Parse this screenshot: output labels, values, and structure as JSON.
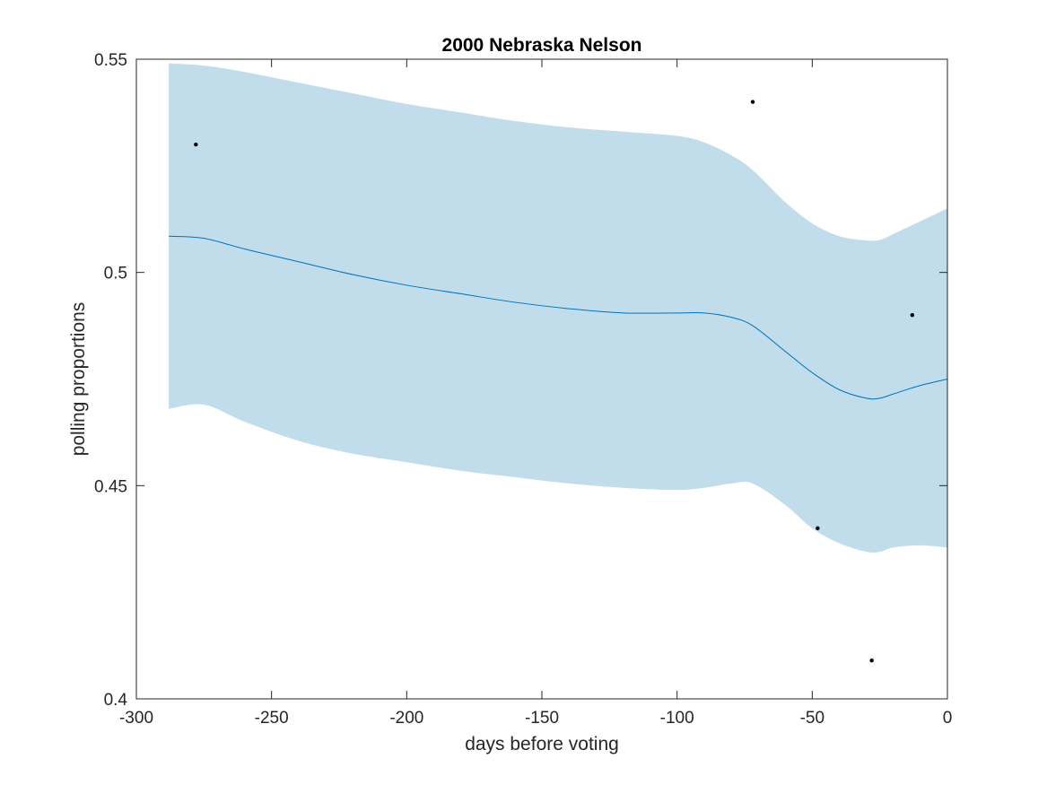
{
  "chart_data": {
    "type": "line",
    "title": "2000 Nebraska Nelson",
    "xlabel": "days before voting",
    "ylabel": "polling proportions",
    "xlim": [
      -300,
      0
    ],
    "ylim": [
      0.4,
      0.55
    ],
    "xticks": [
      -300,
      -250,
      -200,
      -150,
      -100,
      -50,
      0
    ],
    "xtick_labels": [
      "-300",
      "-250",
      "-200",
      "-150",
      "-100",
      "-50",
      "0"
    ],
    "yticks": [
      0.4,
      0.45,
      0.5,
      0.55
    ],
    "ytick_labels": [
      "0.4",
      "0.45",
      "0.5",
      "0.55"
    ],
    "grid": false,
    "colors": {
      "band": "#c1dcea",
      "line": "#0072bd",
      "points": "#000000",
      "axes": "#262626"
    },
    "band": {
      "x": [
        -288,
        -275,
        -260,
        -240,
        -220,
        -200,
        -180,
        -160,
        -140,
        -120,
        -100,
        -90,
        -80,
        -72,
        -60,
        -50,
        -40,
        -30,
        -25,
        -20,
        -10,
        0
      ],
      "upper": [
        0.549,
        0.5485,
        0.547,
        0.5445,
        0.542,
        0.5395,
        0.5375,
        0.5355,
        0.534,
        0.533,
        0.532,
        0.5305,
        0.5275,
        0.524,
        0.5165,
        0.5115,
        0.5085,
        0.5075,
        0.5076,
        0.509,
        0.512,
        0.515
      ],
      "lower": [
        0.468,
        0.469,
        0.465,
        0.4605,
        0.4575,
        0.4555,
        0.4535,
        0.452,
        0.4505,
        0.4495,
        0.449,
        0.4495,
        0.4505,
        0.4505,
        0.4455,
        0.44,
        0.4365,
        0.4345,
        0.4345,
        0.4355,
        0.436,
        0.4355
      ]
    },
    "series": [
      {
        "x": [
          -288,
          -275,
          -260,
          -240,
          -220,
          -200,
          -180,
          -160,
          -140,
          -120,
          -100,
          -90,
          -80,
          -72,
          -60,
          -50,
          -40,
          -30,
          -25,
          -20,
          -10,
          0
        ],
        "values": [
          0.5085,
          0.508,
          0.5055,
          0.5025,
          0.4995,
          0.497,
          0.495,
          0.493,
          0.4915,
          0.4905,
          0.4905,
          0.4905,
          0.4895,
          0.4875,
          0.4815,
          0.4765,
          0.4725,
          0.4705,
          0.4705,
          0.4715,
          0.4735,
          0.475
        ]
      }
    ],
    "points": {
      "x": [
        -278,
        -72,
        -48,
        -28,
        -13
      ],
      "y": [
        0.53,
        0.54,
        0.44,
        0.409,
        0.49
      ]
    }
  }
}
